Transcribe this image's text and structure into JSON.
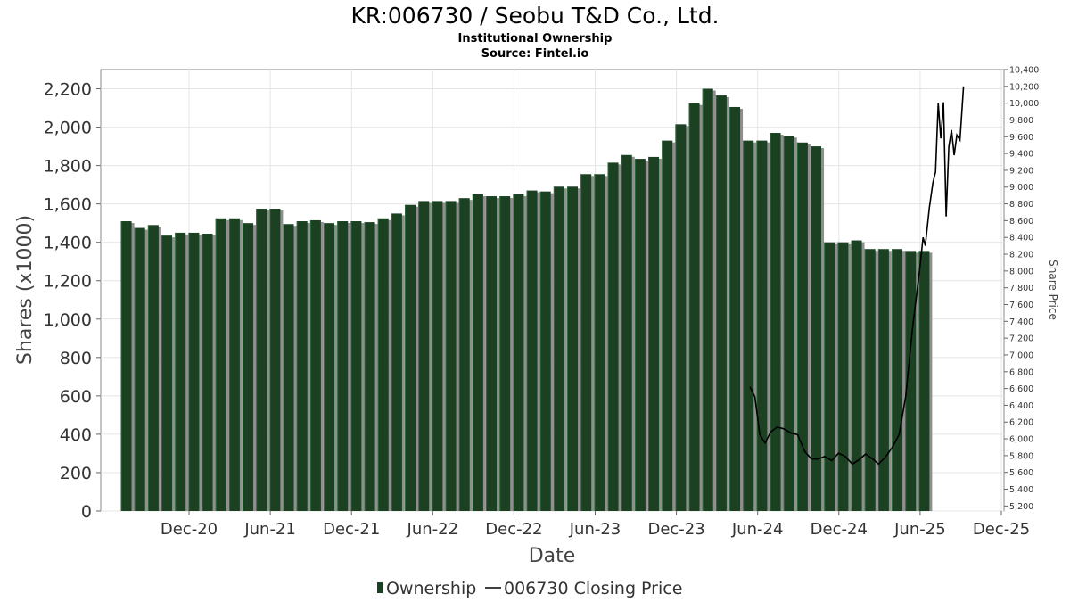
{
  "header": {
    "title": "KR:006730 / Seobu T&D Co., Ltd.",
    "subtitle": "Institutional Ownership",
    "source": "Source: Fintel.io"
  },
  "colors": {
    "bar": "#1b4022",
    "bar_shadow": "#8f8f8f",
    "line": "#000000",
    "grid": "#e4e4e4"
  },
  "legend": {
    "ownership_label": "Ownership",
    "price_label": "006730 Closing Price",
    "placement": "bottom-center"
  },
  "chart_data": {
    "type": "bar",
    "xlabel": "Date",
    "ylabel": "Shares (x1000)",
    "y2label": "Share Price",
    "ylim": [
      0,
      2300
    ],
    "y2lim": [
      5140,
      10400
    ],
    "grid": true,
    "x_tick_labels": [
      "Dec-20",
      "Jun-21",
      "Dec-21",
      "Jun-22",
      "Dec-22",
      "Jun-23",
      "Dec-23",
      "Jun-24",
      "Dec-24",
      "Jun-25",
      "Dec-25"
    ],
    "y_tick_labels": [
      "0",
      "200",
      "400",
      "600",
      "800",
      "1,000",
      "1,200",
      "1,400",
      "1,600",
      "1,800",
      "2,000",
      "2,200"
    ],
    "y2_tick_labels": [
      "5,200",
      "5,400",
      "5,600",
      "5,800",
      "6,000",
      "6,200",
      "6,400",
      "6,600",
      "6,800",
      "7,000",
      "7,200",
      "7,400",
      "7,600",
      "7,800",
      "8,000",
      "8,200",
      "8,400",
      "8,600",
      "8,800",
      "9,000",
      "9,200",
      "9,400",
      "9,600",
      "9,800",
      "10,000",
      "10,200",
      "10,400"
    ],
    "series": [
      {
        "name": "Ownership",
        "values": [
          1510,
          1475,
          1490,
          1435,
          1450,
          1450,
          1445,
          1525,
          1525,
          1500,
          1575,
          1575,
          1495,
          1510,
          1515,
          1500,
          1510,
          1510,
          1505,
          1525,
          1550,
          1595,
          1615,
          1615,
          1615,
          1630,
          1650,
          1640,
          1640,
          1650,
          1670,
          1665,
          1690,
          1690,
          1755,
          1755,
          1815,
          1855,
          1835,
          1845,
          1930,
          2015,
          2125,
          2200,
          2165,
          2105,
          1930,
          1930,
          1970,
          1955,
          1920,
          1900,
          1400,
          1400,
          1410,
          1365,
          1365,
          1365,
          1355,
          1355
        ]
      },
      {
        "name": "006730 Closing Price",
        "points": [
          [
            "2024-05-15",
            6620
          ],
          [
            "2024-05-26",
            6500
          ],
          [
            "2024-06-06",
            6050
          ],
          [
            "2024-06-18",
            5950
          ],
          [
            "2024-06-30",
            6080
          ],
          [
            "2024-07-15",
            6140
          ],
          [
            "2024-07-30",
            6120
          ],
          [
            "2024-08-15",
            6070
          ],
          [
            "2024-08-30",
            6050
          ],
          [
            "2024-09-15",
            5850
          ],
          [
            "2024-09-30",
            5760
          ],
          [
            "2024-10-15",
            5760
          ],
          [
            "2024-10-30",
            5790
          ],
          [
            "2024-11-15",
            5740
          ],
          [
            "2024-11-30",
            5830
          ],
          [
            "2024-12-15",
            5790
          ],
          [
            "2024-12-31",
            5700
          ],
          [
            "2025-01-15",
            5750
          ],
          [
            "2025-01-30",
            5820
          ],
          [
            "2025-02-15",
            5760
          ],
          [
            "2025-02-28",
            5700
          ],
          [
            "2025-03-15",
            5780
          ],
          [
            "2025-03-31",
            5900
          ],
          [
            "2025-04-15",
            6050
          ],
          [
            "2025-04-30",
            6500
          ],
          [
            "2025-05-15",
            7300
          ],
          [
            "2025-05-31",
            8000
          ],
          [
            "2025-06-08",
            8400
          ],
          [
            "2025-06-13",
            8300
          ],
          [
            "2025-06-22",
            8750
          ],
          [
            "2025-06-30",
            9050
          ],
          [
            "2025-07-06",
            9180
          ],
          [
            "2025-07-12",
            10000
          ],
          [
            "2025-07-18",
            9580
          ],
          [
            "2025-07-24",
            10010
          ],
          [
            "2025-07-30",
            8650
          ],
          [
            "2025-08-05",
            9480
          ],
          [
            "2025-08-11",
            9680
          ],
          [
            "2025-08-17",
            9380
          ],
          [
            "2025-08-23",
            9620
          ],
          [
            "2025-08-30",
            9560
          ],
          [
            "2025-09-07",
            10200
          ]
        ]
      }
    ]
  }
}
